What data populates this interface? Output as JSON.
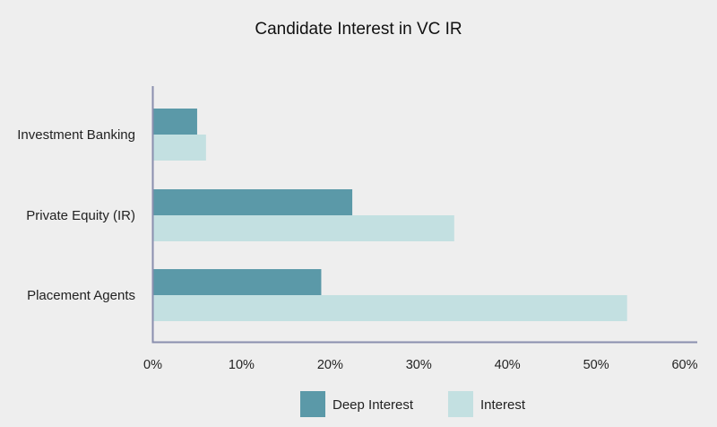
{
  "chart_data": {
    "type": "bar",
    "orientation": "horizontal",
    "title": "Candidate Interest in VC IR",
    "categories": [
      "Investment Banking",
      "Private Equity (IR)",
      "Placement Agents"
    ],
    "series": [
      {
        "name": "Deep Interest",
        "values": [
          5,
          22.5,
          19
        ],
        "color": "#5b99a8"
      },
      {
        "name": "Interest",
        "values": [
          6,
          34,
          53.5
        ],
        "color": "#c3e0e1"
      }
    ],
    "xlim": [
      0,
      60
    ],
    "xticks": [
      0,
      10,
      20,
      30,
      40,
      50,
      60
    ],
    "xtick_labels": [
      "0%",
      "10%",
      "20%",
      "30%",
      "40%",
      "50%",
      "60%"
    ],
    "xlabel": "",
    "ylabel": "",
    "grid": false,
    "legend_position": "bottom",
    "axis_color": "#8a8fae"
  }
}
